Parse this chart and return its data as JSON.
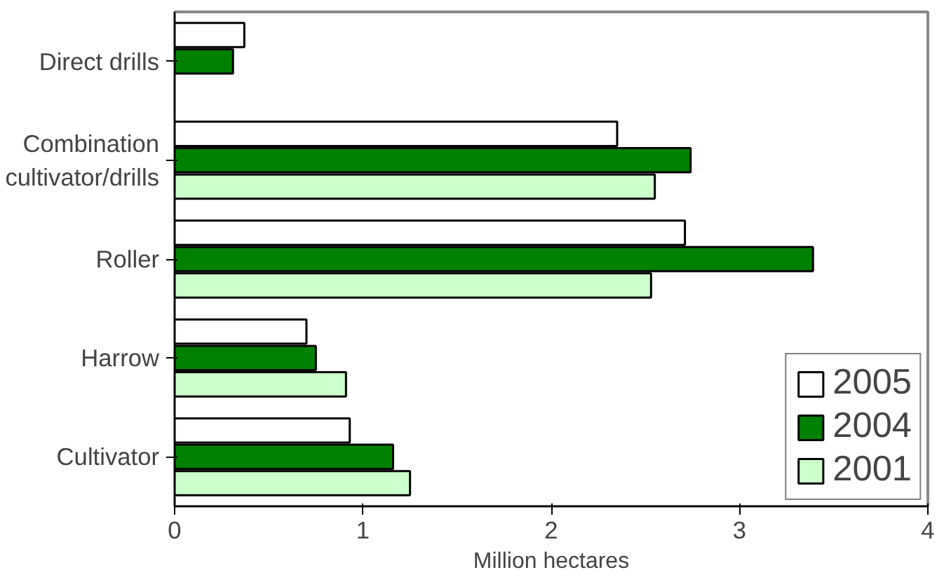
{
  "chart_data": {
    "type": "bar",
    "orientation": "horizontal",
    "xlabel": "Million hectares",
    "categories": [
      "Direct drills",
      "Combination\ncultivator/drills",
      "Roller",
      "Harrow",
      "Cultivator"
    ],
    "series": [
      {
        "name": "2005",
        "color": "#ffffff",
        "values": [
          0.37,
          2.35,
          2.71,
          0.7,
          0.93
        ]
      },
      {
        "name": "2004",
        "color": "#008000",
        "values": [
          0.31,
          2.74,
          3.39,
          0.75,
          1.16
        ]
      },
      {
        "name": "2001",
        "color": "#ccffcc",
        "values": [
          null,
          2.55,
          2.53,
          0.91,
          1.25
        ]
      }
    ],
    "xlim": [
      0,
      4
    ],
    "xticks": [
      0,
      1,
      2,
      3,
      4
    ],
    "grid": false,
    "legend": "bottom right"
  }
}
